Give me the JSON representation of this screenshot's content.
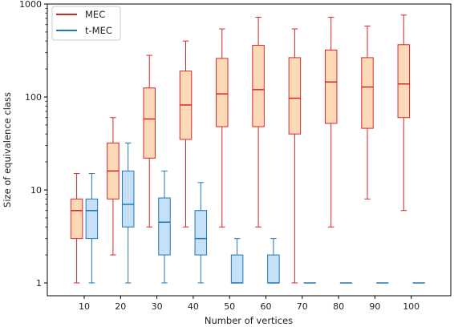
{
  "chart_data": {
    "type": "box",
    "xlabel": "Number of vertices",
    "ylabel": "Size of equivalence class",
    "yscale": "log",
    "ylim": [
      0.75,
      1000
    ],
    "yticks": [
      1,
      10,
      100,
      1000
    ],
    "ytick_labels": [
      "1",
      "10",
      "100",
      "1000"
    ],
    "categories": [
      "10",
      "20",
      "30",
      "40",
      "50",
      "60",
      "70",
      "80",
      "90",
      "100"
    ],
    "legend_position": "top-left",
    "series": [
      {
        "name": "MEC",
        "edge_color": "#d62728",
        "fill_color": "#fdd9b8",
        "boxes": [
          {
            "min": 1,
            "q1": 3,
            "median": 6,
            "q3": 8,
            "max": 15
          },
          {
            "min": 2,
            "q1": 8,
            "median": 16,
            "q3": 32,
            "max": 60
          },
          {
            "min": 4,
            "q1": 22,
            "median": 58,
            "q3": 125,
            "max": 280
          },
          {
            "min": 4,
            "q1": 35,
            "median": 82,
            "q3": 190,
            "max": 400
          },
          {
            "min": 4,
            "q1": 48,
            "median": 108,
            "q3": 260,
            "max": 540
          },
          {
            "min": 4,
            "q1": 48,
            "median": 120,
            "q3": 360,
            "max": 720
          },
          {
            "min": 1,
            "q1": 40,
            "median": 97,
            "q3": 265,
            "max": 540
          },
          {
            "min": 4,
            "q1": 52,
            "median": 145,
            "q3": 320,
            "max": 720
          },
          {
            "min": 8,
            "q1": 46,
            "median": 128,
            "q3": 265,
            "max": 580
          },
          {
            "min": 6,
            "q1": 60,
            "median": 138,
            "q3": 365,
            "max": 760
          }
        ]
      },
      {
        "name": "t-MEC",
        "edge_color": "#1f77b4",
        "fill_color": "#c6e0f7",
        "boxes": [
          {
            "min": 1,
            "q1": 3,
            "median": 6,
            "q3": 8,
            "max": 15
          },
          {
            "min": 1,
            "q1": 4,
            "median": 7,
            "q3": 16,
            "max": 32
          },
          {
            "min": 1,
            "q1": 2,
            "median": 4.5,
            "q3": 8.2,
            "max": 16
          },
          {
            "min": 1,
            "q1": 2,
            "median": 3,
            "q3": 6,
            "max": 12
          },
          {
            "min": 1,
            "q1": 1,
            "median": 1,
            "q3": 2,
            "max": 3
          },
          {
            "min": 1,
            "q1": 1,
            "median": 1,
            "q3": 2,
            "max": 3
          },
          {
            "min": 1,
            "q1": 1,
            "median": 1,
            "q3": 1,
            "max": 1
          },
          {
            "min": 1,
            "q1": 1,
            "median": 1,
            "q3": 1,
            "max": 1
          },
          {
            "min": 1,
            "q1": 1,
            "median": 1,
            "q3": 1,
            "max": 1
          },
          {
            "min": 1,
            "q1": 1,
            "median": 1,
            "q3": 1,
            "max": 1
          }
        ]
      }
    ]
  }
}
